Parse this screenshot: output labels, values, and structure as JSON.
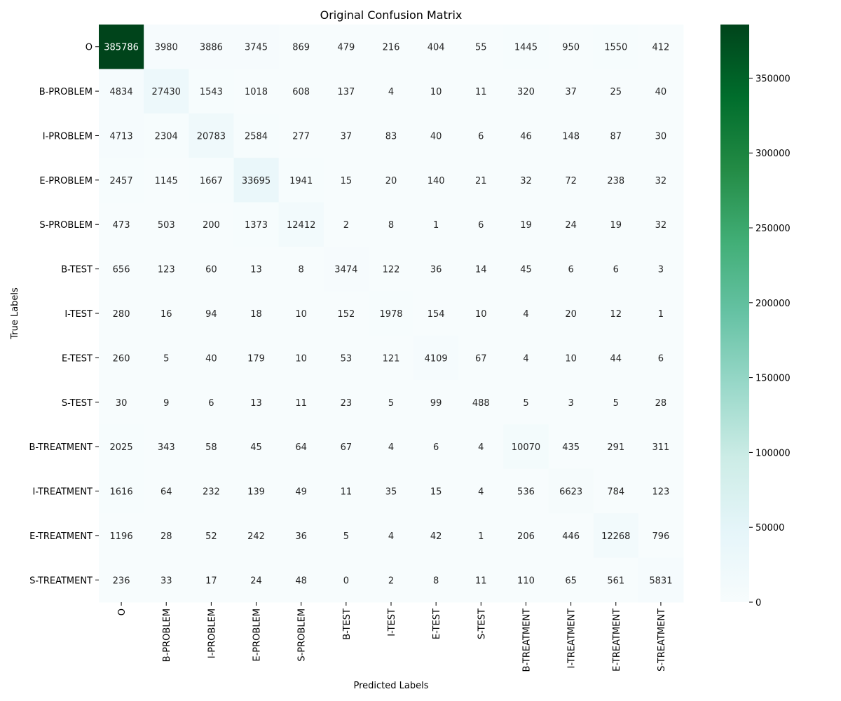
{
  "chart_data": {
    "type": "heatmap",
    "title": "Original Confusion Matrix",
    "xlabel": "Predicted Labels",
    "ylabel": "True Labels",
    "labels": [
      "O",
      "B-PROBLEM",
      "I-PROBLEM",
      "E-PROBLEM",
      "S-PROBLEM",
      "B-TEST",
      "I-TEST",
      "E-TEST",
      "S-TEST",
      "B-TREATMENT",
      "I-TREATMENT",
      "E-TREATMENT",
      "S-TREATMENT"
    ],
    "matrix": [
      [
        385786,
        3980,
        3886,
        3745,
        869,
        479,
        216,
        404,
        55,
        1445,
        950,
        1550,
        412
      ],
      [
        4834,
        27430,
        1543,
        1018,
        608,
        137,
        4,
        10,
        11,
        320,
        37,
        25,
        40
      ],
      [
        4713,
        2304,
        20783,
        2584,
        277,
        37,
        83,
        40,
        6,
        46,
        148,
        87,
        30
      ],
      [
        2457,
        1145,
        1667,
        33695,
        1941,
        15,
        20,
        140,
        21,
        32,
        72,
        238,
        32
      ],
      [
        473,
        503,
        200,
        1373,
        12412,
        2,
        8,
        1,
        6,
        19,
        24,
        19,
        32
      ],
      [
        656,
        123,
        60,
        13,
        8,
        3474,
        122,
        36,
        14,
        45,
        6,
        6,
        3
      ],
      [
        280,
        16,
        94,
        18,
        10,
        152,
        1978,
        154,
        10,
        4,
        20,
        12,
        1
      ],
      [
        260,
        5,
        40,
        179,
        10,
        53,
        121,
        4109,
        67,
        4,
        10,
        44,
        6
      ],
      [
        30,
        9,
        6,
        13,
        11,
        23,
        5,
        99,
        488,
        5,
        3,
        5,
        28
      ],
      [
        2025,
        343,
        58,
        45,
        64,
        67,
        4,
        6,
        4,
        10070,
        435,
        291,
        311
      ],
      [
        1616,
        64,
        232,
        139,
        49,
        11,
        35,
        15,
        4,
        536,
        6623,
        784,
        123
      ],
      [
        1196,
        28,
        52,
        242,
        36,
        5,
        4,
        42,
        1,
        206,
        446,
        12268,
        796
      ],
      [
        236,
        33,
        17,
        24,
        48,
        0,
        2,
        8,
        11,
        110,
        65,
        561,
        5831
      ]
    ],
    "colorbar": {
      "range": [
        0,
        385786
      ],
      "ticks": [
        0,
        50000,
        100000,
        150000,
        200000,
        250000,
        300000,
        350000
      ]
    },
    "colormap": [
      "#f7fcfd",
      "#e5f5f9",
      "#ccece6",
      "#99d8c9",
      "#66c2a4",
      "#41ae76",
      "#238b45",
      "#006d2c",
      "#00441b"
    ],
    "grid": false
  }
}
